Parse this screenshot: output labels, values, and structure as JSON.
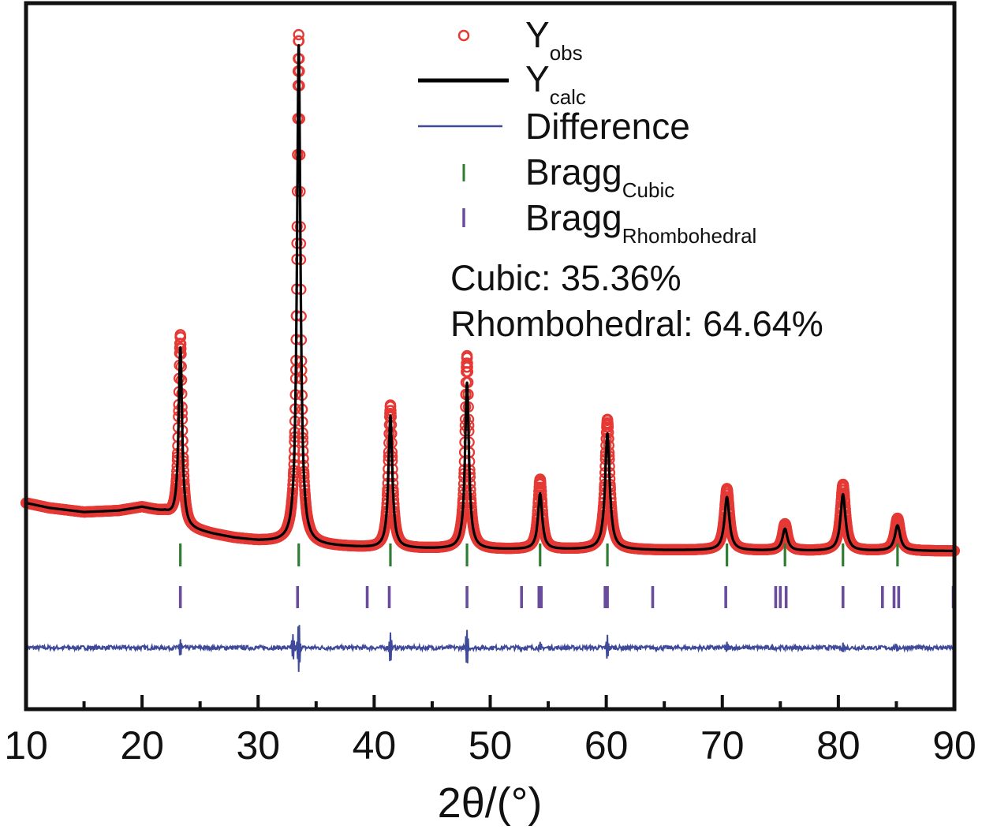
{
  "chart_data": {
    "type": "line",
    "xlabel": "2θ/(°)",
    "ylabel": "",
    "xlim": [
      10,
      90
    ],
    "ylim": [
      0,
      1
    ],
    "xticks": [
      "10",
      "20",
      "30",
      "40",
      "50",
      "60",
      "70",
      "80",
      "90"
    ],
    "x_major_ticks": [
      10,
      20,
      30,
      40,
      50,
      60,
      70,
      80,
      90
    ],
    "x_minor_ticks": [
      15,
      25,
      35,
      45,
      55,
      65,
      75,
      85
    ],
    "grid": false,
    "legend_position": "top-center",
    "legend": [
      {
        "key": "obs",
        "main": "Y",
        "sub": "obs",
        "marker": "open-circle",
        "color": "#e53935"
      },
      {
        "key": "calc",
        "main": "Y",
        "sub": "calc",
        "marker": "line",
        "color": "#000000"
      },
      {
        "key": "diff",
        "main": "Difference",
        "sub": "",
        "marker": "line",
        "color": "#3f4a9a"
      },
      {
        "key": "bragg_cubic",
        "main": "Bragg",
        "sub": "Cubic",
        "marker": "tick",
        "color": "#2e7d32"
      },
      {
        "key": "bragg_rhombo",
        "main": "Bragg",
        "sub": "Rhombohedral",
        "marker": "tick",
        "color": "#6a4c9c"
      }
    ],
    "annotations": [
      "Cubic: 35.36%",
      "Rhombohedral: 64.64%"
    ],
    "background": {
      "x": [
        10,
        12,
        15,
        18,
        20,
        22,
        24,
        26,
        28,
        30,
        32,
        34,
        36,
        40,
        45,
        50,
        55,
        60,
        65,
        70,
        75,
        80,
        85,
        90
      ],
      "y": [
        0.292,
        0.285,
        0.279,
        0.281,
        0.286,
        0.278,
        0.255,
        0.248,
        0.242,
        0.238,
        0.236,
        0.233,
        0.231,
        0.228,
        0.227,
        0.226,
        0.226,
        0.226,
        0.225,
        0.225,
        0.224,
        0.224,
        0.224,
        0.224
      ]
    },
    "peaks": [
      {
        "x": 23.3,
        "obs": 0.53,
        "calc": 0.512,
        "width": 0.18
      },
      {
        "x": 33.5,
        "obs": 0.955,
        "calc": 0.94,
        "width": 0.18
      },
      {
        "x": 41.4,
        "obs": 0.43,
        "calc": 0.415,
        "width": 0.2
      },
      {
        "x": 48.0,
        "obs": 0.5,
        "calc": 0.462,
        "width": 0.2
      },
      {
        "x": 54.3,
        "obs": 0.325,
        "calc": 0.305,
        "width": 0.22
      },
      {
        "x": 60.1,
        "obs": 0.41,
        "calc": 0.39,
        "width": 0.24
      },
      {
        "x": 70.4,
        "obs": 0.312,
        "calc": 0.3,
        "width": 0.26
      },
      {
        "x": 75.4,
        "obs": 0.262,
        "calc": 0.255,
        "width": 0.26
      },
      {
        "x": 80.4,
        "obs": 0.318,
        "calc": 0.304,
        "width": 0.26
      },
      {
        "x": 85.1,
        "obs": 0.27,
        "calc": 0.26,
        "width": 0.28
      }
    ],
    "bragg_cubic": [
      23.3,
      33.5,
      41.4,
      48.0,
      54.3,
      60.1,
      70.4,
      75.4,
      80.4,
      85.1
    ],
    "bragg_rhombo": [
      23.3,
      33.4,
      39.4,
      41.3,
      48.0,
      52.7,
      54.2,
      54.4,
      59.9,
      60.1,
      64.0,
      70.3,
      74.6,
      75.0,
      75.5,
      80.4,
      83.8,
      84.8,
      85.2,
      89.9
    ],
    "difference": {
      "baseline": 0.087,
      "spikes": [
        {
          "x": 23.3,
          "amp": 0.012
        },
        {
          "x": 33.0,
          "amp": 0.018
        },
        {
          "x": 33.5,
          "amp": -0.036
        },
        {
          "x": 41.4,
          "amp": 0.02
        },
        {
          "x": 48.0,
          "amp": 0.028
        },
        {
          "x": 54.3,
          "amp": 0.006
        },
        {
          "x": 60.1,
          "amp": 0.016
        },
        {
          "x": 70.4,
          "amp": 0.006
        },
        {
          "x": 80.4,
          "amp": 0.006
        },
        {
          "x": 85.1,
          "amp": 0.005
        }
      ]
    }
  }
}
